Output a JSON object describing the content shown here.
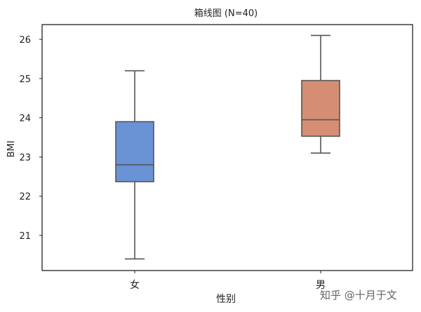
{
  "chart_data": {
    "type": "box",
    "title": "箱线图 (N=40)",
    "xlabel": "性别",
    "ylabel": "BMI",
    "categories": [
      "女",
      "男"
    ],
    "ylim": [
      20.0,
      26.5
    ],
    "yticks": [
      21,
      22,
      23,
      24,
      25,
      26
    ],
    "grid": false,
    "boxes": [
      {
        "category": "女",
        "whisker_low": 20.4,
        "q1": 22.37,
        "median": 22.8,
        "q3": 23.9,
        "whisker_high": 25.2,
        "color": "#6a93d6"
      },
      {
        "category": "男",
        "whisker_low": 23.1,
        "q1": 23.53,
        "median": 23.95,
        "q3": 24.95,
        "whisker_high": 26.1,
        "color": "#d58e73"
      }
    ],
    "line_color": "#555555"
  },
  "watermark": "知乎 @十月于文"
}
